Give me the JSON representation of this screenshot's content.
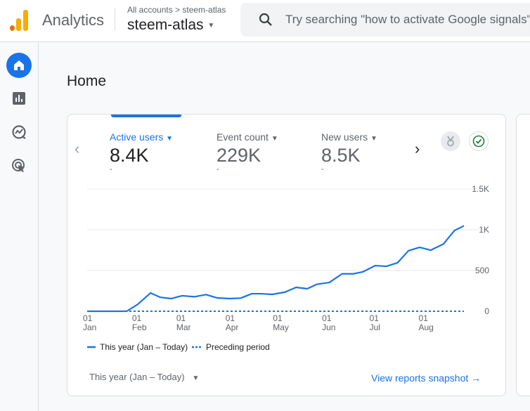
{
  "header": {
    "app_name": "Analytics",
    "breadcrumb": "All accounts > steem-atlas",
    "property": "steem-atlas",
    "search_placeholder": "Try searching \"how to activate Google signals\""
  },
  "sidebar": {
    "items": [
      {
        "icon": "home-icon",
        "active": true
      },
      {
        "icon": "reports-icon"
      },
      {
        "icon": "explore-icon"
      },
      {
        "icon": "advertising-icon"
      }
    ]
  },
  "page": {
    "title": "Home"
  },
  "metrics": [
    {
      "label": "Active users",
      "value": "8.4K",
      "change": "-",
      "selected": true
    },
    {
      "label": "Event count",
      "value": "229K",
      "change": "-"
    },
    {
      "label": "New users",
      "value": "8.5K",
      "change": "-"
    }
  ],
  "colors": {
    "accent": "#1a73e8",
    "line": "#1a73e8"
  },
  "chart_data": {
    "type": "line",
    "yticks": [
      "1.5K",
      "1K",
      "500",
      "0"
    ],
    "ylim": [
      0,
      1500
    ],
    "xticks": [
      {
        "d": "01",
        "m": "Jan",
        "date": "01-01"
      },
      {
        "d": "01",
        "m": "Feb",
        "date": "02-01"
      },
      {
        "d": "01",
        "m": "Mar",
        "date": "03-01"
      },
      {
        "d": "01",
        "m": "Apr",
        "date": "04-01"
      },
      {
        "d": "01",
        "m": "May",
        "date": "05-01"
      },
      {
        "d": "01",
        "m": "Jun",
        "date": "06-01"
      },
      {
        "d": "01",
        "m": "Jul",
        "date": "07-01"
      },
      {
        "d": "01",
        "m": "Aug",
        "date": "08-01"
      }
    ],
    "xlim": [
      "01-01",
      "08-27"
    ],
    "grid": true,
    "legend_position": "bottom-left",
    "series": [
      {
        "name": "This year (Jan – Today)",
        "style": "solid",
        "points": [
          [
            "01-01",
            0
          ],
          [
            "01-26",
            0
          ],
          [
            "02-02",
            86
          ],
          [
            "02-10",
            224
          ],
          [
            "02-16",
            172
          ],
          [
            "02-23",
            155
          ],
          [
            "03-02",
            190
          ],
          [
            "03-10",
            178
          ],
          [
            "03-17",
            204
          ],
          [
            "03-24",
            164
          ],
          [
            "04-01",
            155
          ],
          [
            "04-08",
            161
          ],
          [
            "04-15",
            215
          ],
          [
            "04-21",
            215
          ],
          [
            "04-28",
            207
          ],
          [
            "05-06",
            235
          ],
          [
            "05-13",
            293
          ],
          [
            "05-20",
            276
          ],
          [
            "05-26",
            330
          ],
          [
            "06-03",
            353
          ],
          [
            "06-11",
            459
          ],
          [
            "06-18",
            459
          ],
          [
            "06-24",
            482
          ],
          [
            "07-02",
            560
          ],
          [
            "07-09",
            551
          ],
          [
            "07-16",
            594
          ],
          [
            "07-23",
            743
          ],
          [
            "07-30",
            784
          ],
          [
            "08-06",
            749
          ],
          [
            "08-14",
            824
          ],
          [
            "08-21",
            990
          ],
          [
            "08-27",
            1048
          ]
        ]
      },
      {
        "name": "Preceding period",
        "style": "dotted",
        "points": [
          [
            "01-01",
            0
          ],
          [
            "08-27",
            0
          ]
        ]
      }
    ]
  },
  "footer": {
    "date_range": "This year (Jan – Today)",
    "link": "View reports snapshot"
  }
}
